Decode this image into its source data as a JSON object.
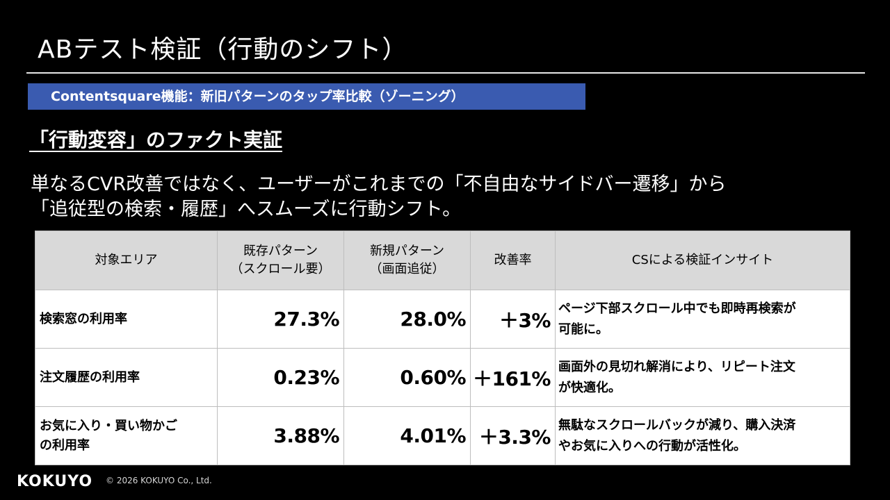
{
  "slide": {
    "title": "ABテスト検証（行動のシフト）",
    "feature_label": "Contentsquare機能：新旧パターンのタップ率比較（ゾーニング）",
    "subheading": "「行動変容」のファクト実証",
    "body_line1": "単なるCVR改善ではなく、ユーザーがこれまでの「不自由なサイドバー遷移」から",
    "body_line2": "「追従型の検索・履歴」へスムーズに行動シフト。"
  },
  "table": {
    "headers": [
      {
        "line1": "対象エリア",
        "line2": ""
      },
      {
        "line1": "既存パターン",
        "line2": "（スクロール要）"
      },
      {
        "line1": "新規パターン",
        "line2": "（画面追従）"
      },
      {
        "line1": "改善率",
        "line2": ""
      },
      {
        "line1": "CSによる検証インサイト",
        "line2": ""
      }
    ],
    "rows": [
      {
        "area_l1": "検索窓の利用率",
        "area_l2": "",
        "old": "27.3%",
        "new": "28.0%",
        "rate": "＋3%",
        "insight_l1": "ページ下部スクロール中でも即時再検索が",
        "insight_l2": "可能に。"
      },
      {
        "area_l1": "注文履歴の利用率",
        "area_l2": "",
        "old": "0.23%",
        "new": "0.60%",
        "rate": "＋161%",
        "insight_l1": "画面外の見切れ解消により、リピート注文",
        "insight_l2": "が快適化。"
      },
      {
        "area_l1": "お気に入り・買い物かご",
        "area_l2": "の利用率",
        "old": "3.88%",
        "new": "4.01%",
        "rate": "＋3.3%",
        "insight_l1": "無駄なスクロールバックが減り、購入決済",
        "insight_l2": "やお気に入りへの行動が活性化。"
      }
    ]
  },
  "footer": {
    "logo": "KOKUYO",
    "copyright": "© 2026 KOKUYO Co., Ltd."
  }
}
